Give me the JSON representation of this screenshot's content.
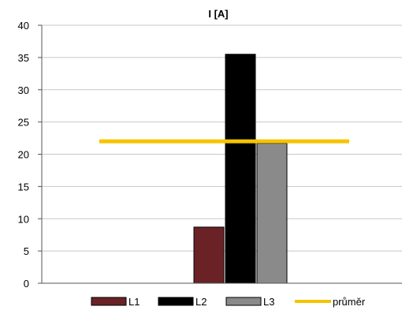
{
  "chart_data": {
    "type": "bar",
    "title": "I [A]",
    "ylim": [
      0,
      40
    ],
    "y_ticks": [
      0,
      5,
      10,
      15,
      20,
      25,
      30,
      35,
      40
    ],
    "grid": true,
    "series": [
      {
        "name": "L1",
        "value": 8.7,
        "color": "#6b2226"
      },
      {
        "name": "L2",
        "value": 35.5,
        "color": "#000000"
      },
      {
        "name": "L3",
        "value": 21.7,
        "color": "#8a8a8a"
      }
    ],
    "average": {
      "name": "průměr",
      "value": 22.0,
      "color": "#f5c400"
    },
    "legend_position": "bottom-right"
  }
}
